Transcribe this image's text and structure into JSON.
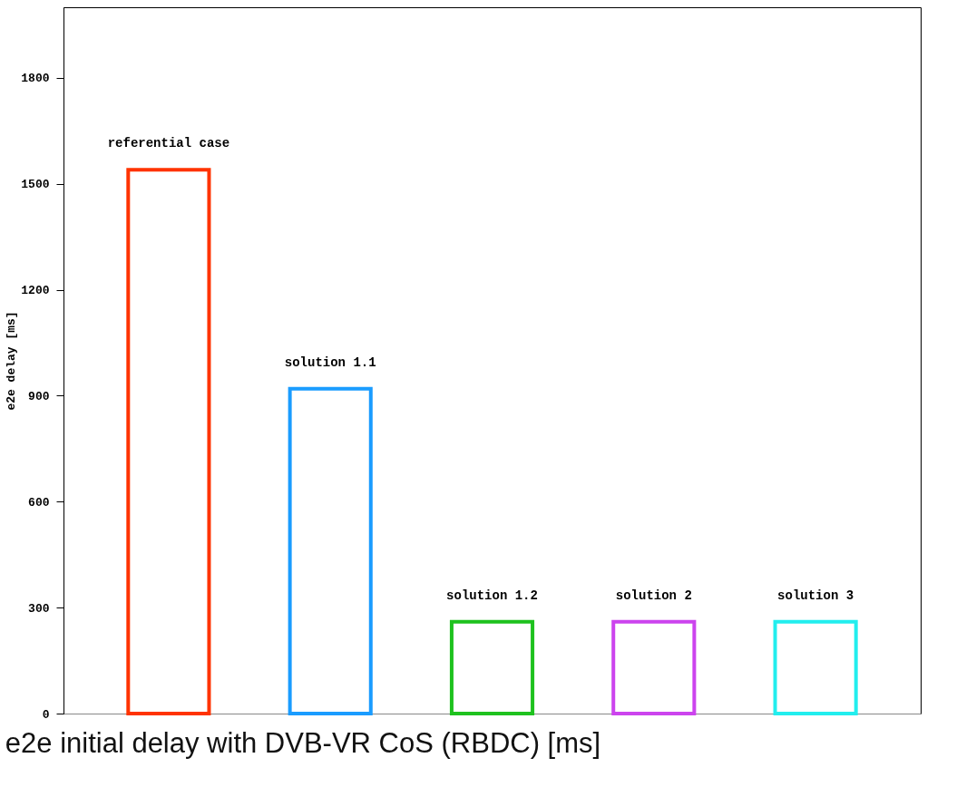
{
  "chart_data": {
    "type": "bar",
    "title": "e2e initial delay with DVB-VR CoS (RBDC) [ms]",
    "ylabel": "e2e delay [ms]",
    "categories": [
      "referential case",
      "solution 1.1",
      "solution 1.2",
      "solution 2",
      "solution 3"
    ],
    "values": [
      1540,
      920,
      260,
      260,
      260
    ],
    "colors": [
      "#ff3300",
      "#1a9cff",
      "#1ec21e",
      "#cc44ee",
      "#22eeee"
    ],
    "ylim": [
      0,
      2000
    ],
    "yticks": [
      0,
      300,
      600,
      900,
      1200,
      1500,
      1800
    ],
    "grid": false,
    "legend": false
  }
}
